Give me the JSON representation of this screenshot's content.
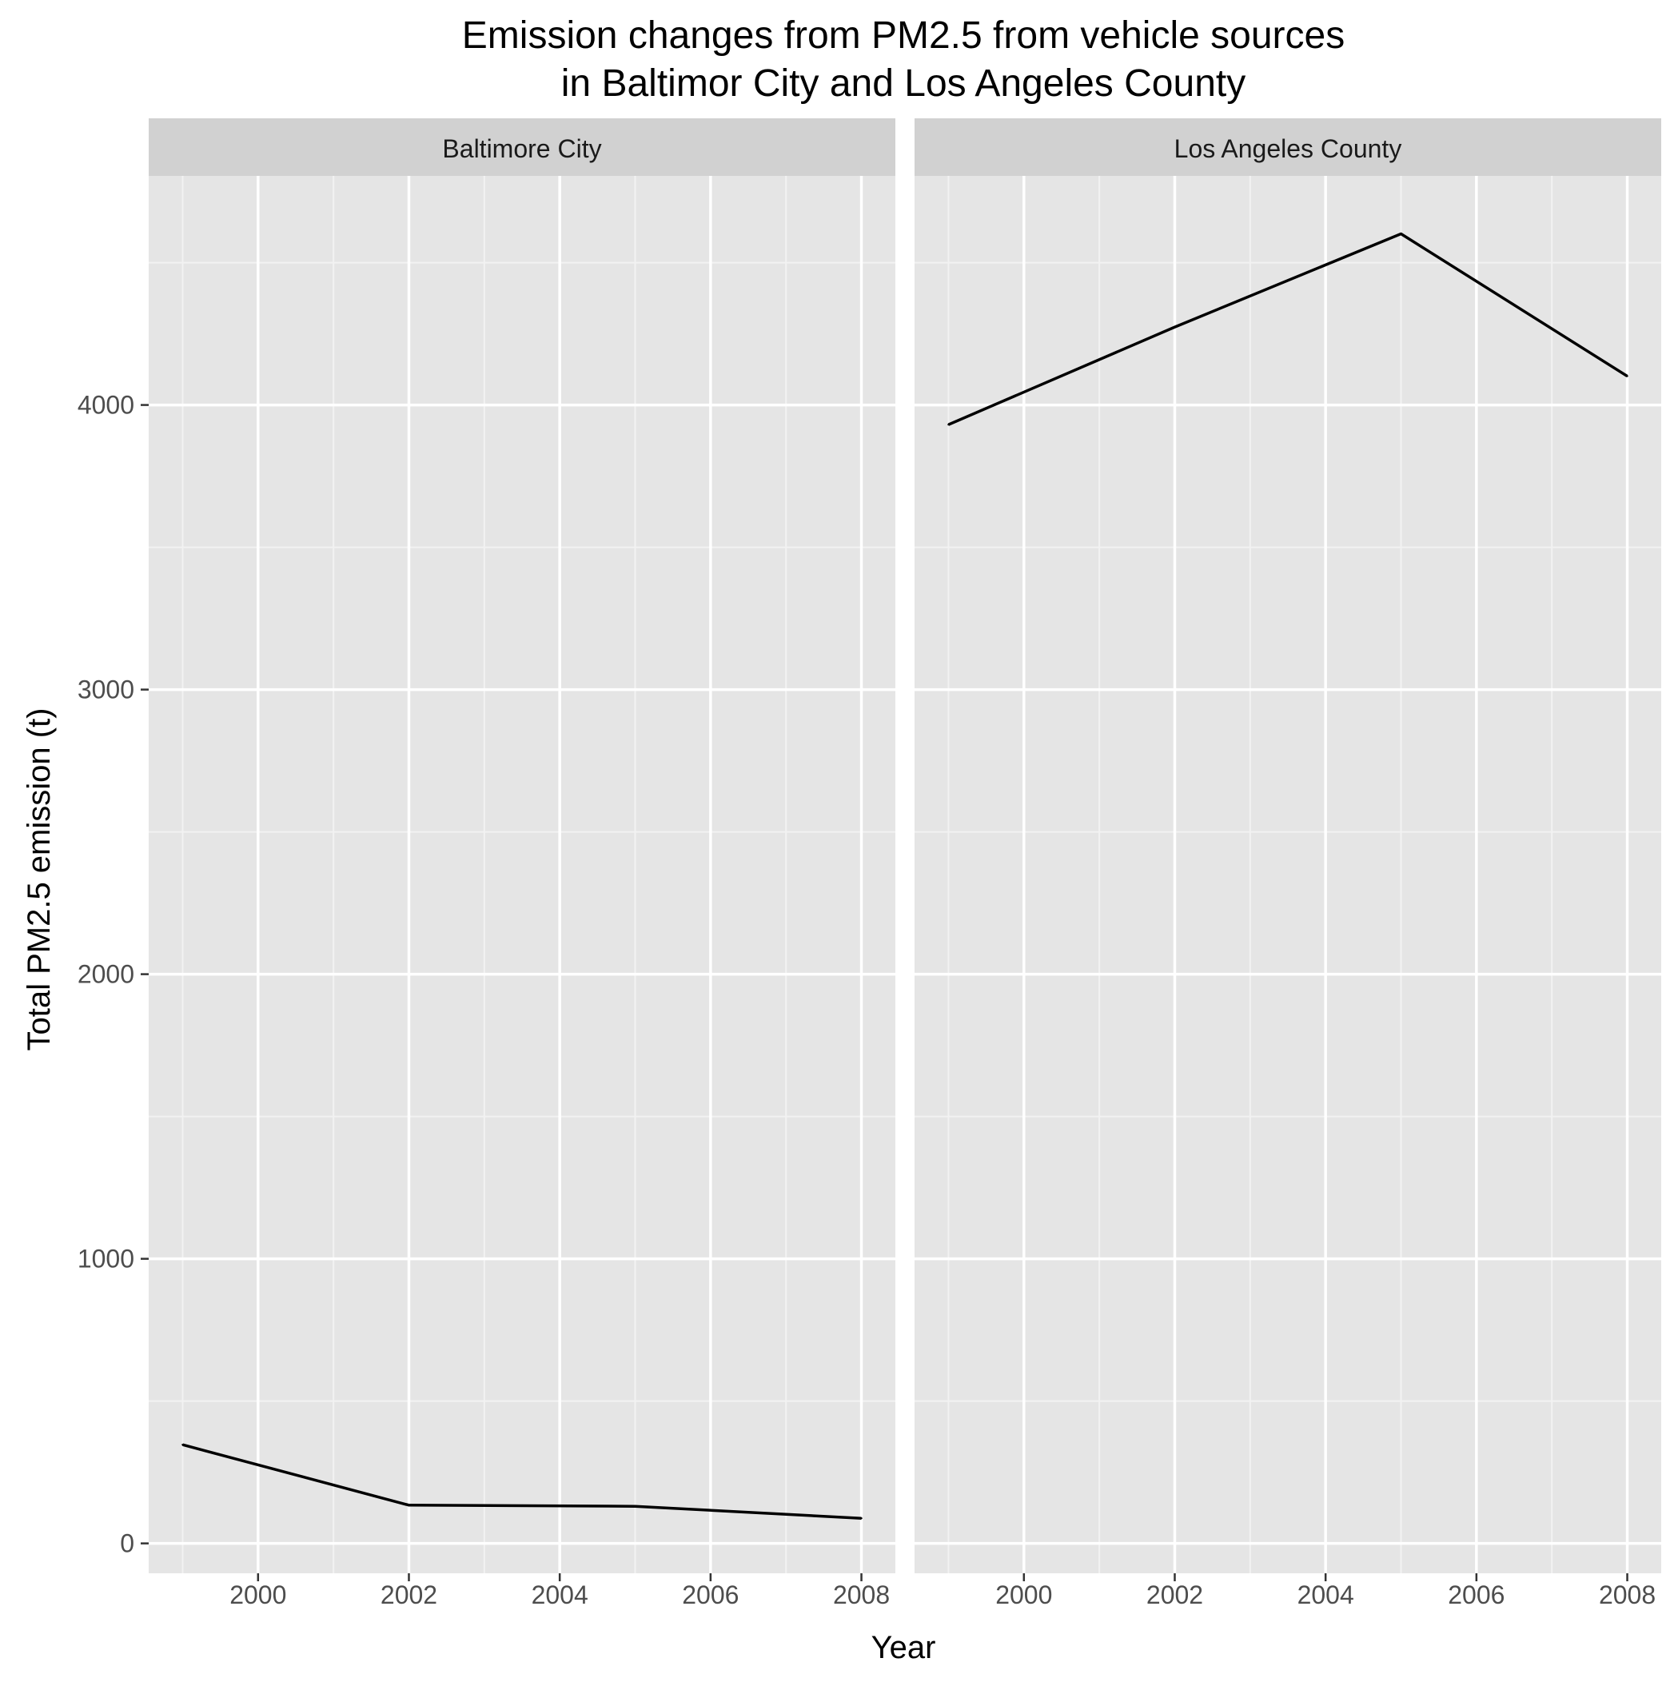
{
  "chart_data": {
    "type": "line",
    "title": "Emission changes from PM2.5 from vehicle sources\nin Baltimor City and Los Angeles County",
    "xlabel": "Year",
    "ylabel": "Total PM2.5 emission (t)",
    "xlim": [
      1998.55,
      2008.45
    ],
    "ylim": [
      -105,
      4805
    ],
    "x_ticks": [
      2000,
      2002,
      2004,
      2006,
      2008
    ],
    "y_ticks": [
      0,
      1000,
      2000,
      3000,
      4000
    ],
    "grid": true,
    "legend": "none",
    "line_color": "#000000",
    "panel_background": "#e5e5e5",
    "strip_background": "#d1d1d1",
    "panels": [
      {
        "name": "Baltimore City",
        "x": [
          1999,
          2002,
          2005,
          2008
        ],
        "y": [
          346.8,
          134.3,
          130.4,
          88.3
        ]
      },
      {
        "name": "Los Angeles County",
        "x": [
          1999,
          2002,
          2005,
          2008
        ],
        "y": [
          3931.1,
          4273.7,
          4601.4,
          4101.3
        ]
      }
    ]
  }
}
